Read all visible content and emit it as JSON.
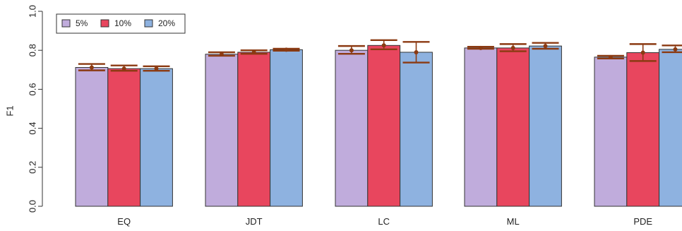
{
  "chart_data": {
    "type": "bar",
    "title": "",
    "xlabel": "",
    "ylabel": "F1",
    "ylim": [
      0,
      1
    ],
    "yticks": [
      "0.0",
      "0.2",
      "0.4",
      "0.6",
      "0.8",
      "1.0"
    ],
    "categories": [
      "EQ",
      "JDT",
      "LC",
      "ML",
      "PDE"
    ],
    "grid": false,
    "legend_position": "top-left",
    "series": [
      {
        "name": "5%",
        "color": "#c0acdc",
        "values": [
          0.712,
          0.78,
          0.8,
          0.812,
          0.765
        ],
        "error_low": [
          0.697,
          0.772,
          0.782,
          0.808,
          0.758
        ],
        "error_high": [
          0.73,
          0.79,
          0.822,
          0.818,
          0.772
        ]
      },
      {
        "name": "10%",
        "color": "#e8465e",
        "values": [
          0.706,
          0.79,
          0.825,
          0.812,
          0.788
        ],
        "error_low": [
          0.695,
          0.782,
          0.805,
          0.795,
          0.745
        ],
        "error_high": [
          0.722,
          0.8,
          0.852,
          0.832,
          0.832
        ]
      },
      {
        "name": "20%",
        "color": "#8eb2e0",
        "values": [
          0.706,
          0.803,
          0.79,
          0.822,
          0.805
        ],
        "error_low": [
          0.695,
          0.798,
          0.737,
          0.808,
          0.79
        ],
        "error_high": [
          0.718,
          0.808,
          0.843,
          0.838,
          0.825
        ]
      }
    ],
    "error_bar_color": "#8b3a12"
  }
}
